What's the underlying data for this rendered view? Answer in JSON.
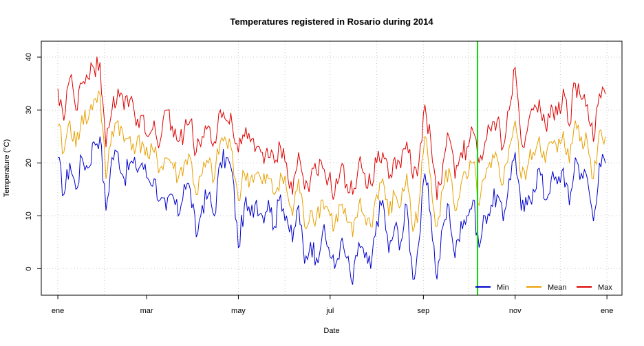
{
  "chart_data": {
    "type": "line",
    "title": "Temperatures registered in Rosario during 2014",
    "xlabel": "Date",
    "ylabel": "Temperature (°C)",
    "x_start": "2014-01-01",
    "x_end": "2014-12-31",
    "xlim": [
      "2013-12-21",
      "2015-01-11"
    ],
    "ylim": [
      -5,
      43
    ],
    "x_ticks": [
      {
        "date": "2014-01-01",
        "label": "ene"
      },
      {
        "date": "2014-03-01",
        "label": "mar"
      },
      {
        "date": "2014-05-01",
        "label": "may"
      },
      {
        "date": "2014-07-01",
        "label": "jul"
      },
      {
        "date": "2014-09-01",
        "label": "sep"
      },
      {
        "date": "2014-11-01",
        "label": "nov"
      },
      {
        "date": "2015-01-01",
        "label": "ene"
      }
    ],
    "y_ticks": [
      0,
      10,
      20,
      30,
      40
    ],
    "grid": true,
    "grid_x": [
      "2014-01-01",
      "2014-02-01",
      "2014-05-01",
      "2014-06-01",
      "2014-07-01",
      "2014-08-01",
      "2014-09-01",
      "2014-10-01",
      "2014-11-01",
      "2014-12-01",
      "2015-01-01"
    ],
    "vline": {
      "date": "2014-10-07",
      "color": "#00dd00"
    },
    "legend_position": "bottom-right",
    "series": [
      {
        "name": "Min",
        "color": "#0000cc",
        "anchors": [
          [
            "2014-01-01",
            21
          ],
          [
            "2014-01-05",
            14
          ],
          [
            "2014-01-09",
            20
          ],
          [
            "2014-01-13",
            15
          ],
          [
            "2014-01-17",
            21
          ],
          [
            "2014-01-21",
            19
          ],
          [
            "2014-01-25",
            24
          ],
          [
            "2014-01-29",
            25
          ],
          [
            "2014-02-02",
            11
          ],
          [
            "2014-02-06",
            21
          ],
          [
            "2014-02-10",
            22
          ],
          [
            "2014-02-14",
            17
          ],
          [
            "2014-02-18",
            20
          ],
          [
            "2014-02-22",
            19
          ],
          [
            "2014-02-26",
            20
          ],
          [
            "2014-03-02",
            17
          ],
          [
            "2014-03-06",
            17
          ],
          [
            "2014-03-10",
            13
          ],
          [
            "2014-03-14",
            11
          ],
          [
            "2014-03-18",
            14
          ],
          [
            "2014-03-22",
            10
          ],
          [
            "2014-03-26",
            16
          ],
          [
            "2014-03-30",
            15
          ],
          [
            "2014-04-03",
            6
          ],
          [
            "2014-04-07",
            12
          ],
          [
            "2014-04-11",
            14
          ],
          [
            "2014-04-15",
            10
          ],
          [
            "2014-04-19",
            20
          ],
          [
            "2014-04-23",
            21
          ],
          [
            "2014-04-27",
            18
          ],
          [
            "2014-05-01",
            4
          ],
          [
            "2014-05-05",
            12
          ],
          [
            "2014-05-09",
            10
          ],
          [
            "2014-05-13",
            13
          ],
          [
            "2014-05-17",
            10
          ],
          [
            "2014-05-21",
            13
          ],
          [
            "2014-05-25",
            8
          ],
          [
            "2014-05-29",
            14
          ],
          [
            "2014-06-02",
            10
          ],
          [
            "2014-06-06",
            5
          ],
          [
            "2014-06-10",
            12
          ],
          [
            "2014-06-14",
            1
          ],
          [
            "2014-06-18",
            5
          ],
          [
            "2014-06-22",
            2
          ],
          [
            "2014-06-26",
            7
          ],
          [
            "2014-06-30",
            4
          ],
          [
            "2014-07-04",
            0
          ],
          [
            "2014-07-08",
            5
          ],
          [
            "2014-07-12",
            2
          ],
          [
            "2014-07-16",
            -3
          ],
          [
            "2014-07-20",
            5
          ],
          [
            "2014-07-24",
            2
          ],
          [
            "2014-07-28",
            0
          ],
          [
            "2014-08-01",
            9
          ],
          [
            "2014-08-05",
            13
          ],
          [
            "2014-08-09",
            3
          ],
          [
            "2014-08-13",
            8
          ],
          [
            "2014-08-17",
            5
          ],
          [
            "2014-08-21",
            12
          ],
          [
            "2014-08-25",
            -2
          ],
          [
            "2014-08-29",
            5
          ],
          [
            "2014-09-02",
            18
          ],
          [
            "2014-09-06",
            10
          ],
          [
            "2014-09-10",
            -2
          ],
          [
            "2014-09-14",
            8
          ],
          [
            "2014-09-18",
            12
          ],
          [
            "2014-09-22",
            2
          ],
          [
            "2014-09-26",
            9
          ],
          [
            "2014-09-30",
            10
          ],
          [
            "2014-10-04",
            13
          ],
          [
            "2014-10-08",
            4
          ],
          [
            "2014-10-12",
            10
          ],
          [
            "2014-10-16",
            12
          ],
          [
            "2014-10-20",
            14
          ],
          [
            "2014-10-24",
            9
          ],
          [
            "2014-10-28",
            17
          ],
          [
            "2014-11-01",
            22
          ],
          [
            "2014-11-05",
            11
          ],
          [
            "2014-11-09",
            12
          ],
          [
            "2014-11-13",
            15
          ],
          [
            "2014-11-17",
            19
          ],
          [
            "2014-11-21",
            13
          ],
          [
            "2014-11-25",
            17
          ],
          [
            "2014-11-29",
            16
          ],
          [
            "2014-12-03",
            19
          ],
          [
            "2014-12-07",
            12
          ],
          [
            "2014-12-11",
            21
          ],
          [
            "2014-12-15",
            18
          ],
          [
            "2014-12-19",
            17
          ],
          [
            "2014-12-23",
            9
          ],
          [
            "2014-12-27",
            20
          ],
          [
            "2014-12-31",
            20
          ]
        ]
      },
      {
        "name": "Mean",
        "color": "#e8a000",
        "anchors": [
          [
            "2014-01-01",
            27
          ],
          [
            "2014-01-05",
            22
          ],
          [
            "2014-01-09",
            28
          ],
          [
            "2014-01-13",
            23
          ],
          [
            "2014-01-17",
            29
          ],
          [
            "2014-01-21",
            28
          ],
          [
            "2014-01-25",
            32
          ],
          [
            "2014-01-29",
            33
          ],
          [
            "2014-02-02",
            17
          ],
          [
            "2014-02-06",
            26
          ],
          [
            "2014-02-10",
            28
          ],
          [
            "2014-02-14",
            24
          ],
          [
            "2014-02-18",
            25
          ],
          [
            "2014-02-22",
            23
          ],
          [
            "2014-02-26",
            24
          ],
          [
            "2014-03-02",
            21
          ],
          [
            "2014-03-06",
            22
          ],
          [
            "2014-03-10",
            19
          ],
          [
            "2014-03-14",
            21
          ],
          [
            "2014-03-18",
            20
          ],
          [
            "2014-03-22",
            17
          ],
          [
            "2014-03-26",
            20
          ],
          [
            "2014-03-30",
            21
          ],
          [
            "2014-04-03",
            14
          ],
          [
            "2014-04-07",
            18
          ],
          [
            "2014-04-11",
            20
          ],
          [
            "2014-04-15",
            17
          ],
          [
            "2014-04-19",
            24
          ],
          [
            "2014-04-23",
            24
          ],
          [
            "2014-04-27",
            22
          ],
          [
            "2014-05-01",
            13
          ],
          [
            "2014-05-05",
            18
          ],
          [
            "2014-05-09",
            17
          ],
          [
            "2014-05-13",
            18
          ],
          [
            "2014-05-17",
            16
          ],
          [
            "2014-05-21",
            17
          ],
          [
            "2014-05-25",
            14
          ],
          [
            "2014-05-29",
            18
          ],
          [
            "2014-06-02",
            15
          ],
          [
            "2014-06-06",
            10
          ],
          [
            "2014-06-10",
            17
          ],
          [
            "2014-06-14",
            8
          ],
          [
            "2014-06-18",
            11
          ],
          [
            "2014-06-22",
            10
          ],
          [
            "2014-06-26",
            13
          ],
          [
            "2014-06-30",
            11
          ],
          [
            "2014-07-04",
            8
          ],
          [
            "2014-07-08",
            12
          ],
          [
            "2014-07-12",
            9
          ],
          [
            "2014-07-16",
            6
          ],
          [
            "2014-07-20",
            12
          ],
          [
            "2014-07-24",
            10
          ],
          [
            "2014-07-28",
            8
          ],
          [
            "2014-08-01",
            14
          ],
          [
            "2014-08-05",
            17
          ],
          [
            "2014-08-09",
            10
          ],
          [
            "2014-08-13",
            14
          ],
          [
            "2014-08-17",
            12
          ],
          [
            "2014-08-21",
            18
          ],
          [
            "2014-08-25",
            7
          ],
          [
            "2014-08-29",
            12
          ],
          [
            "2014-09-02",
            25
          ],
          [
            "2014-09-06",
            17
          ],
          [
            "2014-09-10",
            8
          ],
          [
            "2014-09-14",
            15
          ],
          [
            "2014-09-18",
            19
          ],
          [
            "2014-09-22",
            11
          ],
          [
            "2014-09-26",
            16
          ],
          [
            "2014-09-30",
            17
          ],
          [
            "2014-10-04",
            20
          ],
          [
            "2014-10-08",
            12
          ],
          [
            "2014-10-12",
            17
          ],
          [
            "2014-10-16",
            19
          ],
          [
            "2014-10-20",
            21
          ],
          [
            "2014-10-24",
            16
          ],
          [
            "2014-10-28",
            23
          ],
          [
            "2014-11-01",
            28
          ],
          [
            "2014-11-05",
            17
          ],
          [
            "2014-11-09",
            19
          ],
          [
            "2014-11-13",
            22
          ],
          [
            "2014-11-17",
            25
          ],
          [
            "2014-11-21",
            20
          ],
          [
            "2014-11-25",
            24
          ],
          [
            "2014-11-29",
            22
          ],
          [
            "2014-12-03",
            26
          ],
          [
            "2014-12-07",
            20
          ],
          [
            "2014-12-11",
            28
          ],
          [
            "2014-12-15",
            25
          ],
          [
            "2014-12-19",
            24
          ],
          [
            "2014-12-23",
            17
          ],
          [
            "2014-12-27",
            26
          ],
          [
            "2014-12-31",
            25
          ]
        ]
      },
      {
        "name": "Max",
        "color": "#dd0000",
        "anchors": [
          [
            "2014-01-01",
            34
          ],
          [
            "2014-01-05",
            28
          ],
          [
            "2014-01-09",
            36
          ],
          [
            "2014-01-13",
            30
          ],
          [
            "2014-01-17",
            35
          ],
          [
            "2014-01-21",
            36
          ],
          [
            "2014-01-25",
            38
          ],
          [
            "2014-01-29",
            39
          ],
          [
            "2014-02-02",
            23
          ],
          [
            "2014-02-06",
            30
          ],
          [
            "2014-02-10",
            34
          ],
          [
            "2014-02-14",
            30
          ],
          [
            "2014-02-18",
            32
          ],
          [
            "2014-02-22",
            27
          ],
          [
            "2014-02-26",
            29
          ],
          [
            "2014-03-02",
            25
          ],
          [
            "2014-03-06",
            28
          ],
          [
            "2014-03-10",
            24
          ],
          [
            "2014-03-14",
            30
          ],
          [
            "2014-03-18",
            27
          ],
          [
            "2014-03-22",
            24
          ],
          [
            "2014-03-26",
            26
          ],
          [
            "2014-03-30",
            28
          ],
          [
            "2014-04-03",
            22
          ],
          [
            "2014-04-07",
            25
          ],
          [
            "2014-04-11",
            27
          ],
          [
            "2014-04-15",
            24
          ],
          [
            "2014-04-19",
            30
          ],
          [
            "2014-04-23",
            28
          ],
          [
            "2014-04-27",
            27
          ],
          [
            "2014-05-01",
            22
          ],
          [
            "2014-05-05",
            25
          ],
          [
            "2014-05-09",
            24
          ],
          [
            "2014-05-13",
            23
          ],
          [
            "2014-05-17",
            22
          ],
          [
            "2014-05-21",
            21
          ],
          [
            "2014-05-25",
            20
          ],
          [
            "2014-05-29",
            23
          ],
          [
            "2014-06-02",
            20
          ],
          [
            "2014-06-06",
            14
          ],
          [
            "2014-06-10",
            22
          ],
          [
            "2014-06-14",
            15
          ],
          [
            "2014-06-18",
            17
          ],
          [
            "2014-06-22",
            18
          ],
          [
            "2014-06-26",
            19
          ],
          [
            "2014-06-30",
            17
          ],
          [
            "2014-07-04",
            14
          ],
          [
            "2014-07-08",
            19
          ],
          [
            "2014-07-12",
            16
          ],
          [
            "2014-07-16",
            14
          ],
          [
            "2014-07-20",
            20
          ],
          [
            "2014-07-24",
            18
          ],
          [
            "2014-07-28",
            16
          ],
          [
            "2014-08-01",
            20
          ],
          [
            "2014-08-05",
            22
          ],
          [
            "2014-08-09",
            17
          ],
          [
            "2014-08-13",
            21
          ],
          [
            "2014-08-17",
            19
          ],
          [
            "2014-08-21",
            24
          ],
          [
            "2014-08-25",
            17
          ],
          [
            "2014-08-29",
            20
          ],
          [
            "2014-09-02",
            31
          ],
          [
            "2014-09-06",
            24
          ],
          [
            "2014-09-10",
            13
          ],
          [
            "2014-09-14",
            20
          ],
          [
            "2014-09-18",
            25
          ],
          [
            "2014-09-22",
            17
          ],
          [
            "2014-09-26",
            22
          ],
          [
            "2014-09-30",
            23
          ],
          [
            "2014-10-04",
            26
          ],
          [
            "2014-10-08",
            20
          ],
          [
            "2014-10-12",
            24
          ],
          [
            "2014-10-16",
            26
          ],
          [
            "2014-10-20",
            28
          ],
          [
            "2014-10-24",
            23
          ],
          [
            "2014-10-28",
            30
          ],
          [
            "2014-11-01",
            38
          ],
          [
            "2014-11-05",
            24
          ],
          [
            "2014-11-09",
            26
          ],
          [
            "2014-11-13",
            30
          ],
          [
            "2014-11-17",
            32
          ],
          [
            "2014-11-21",
            27
          ],
          [
            "2014-11-25",
            31
          ],
          [
            "2014-11-29",
            29
          ],
          [
            "2014-12-03",
            34
          ],
          [
            "2014-12-07",
            27
          ],
          [
            "2014-12-11",
            35
          ],
          [
            "2014-12-15",
            32
          ],
          [
            "2014-12-19",
            31
          ],
          [
            "2014-12-23",
            24
          ],
          [
            "2014-12-27",
            33
          ],
          [
            "2014-12-31",
            33
          ]
        ]
      }
    ]
  }
}
